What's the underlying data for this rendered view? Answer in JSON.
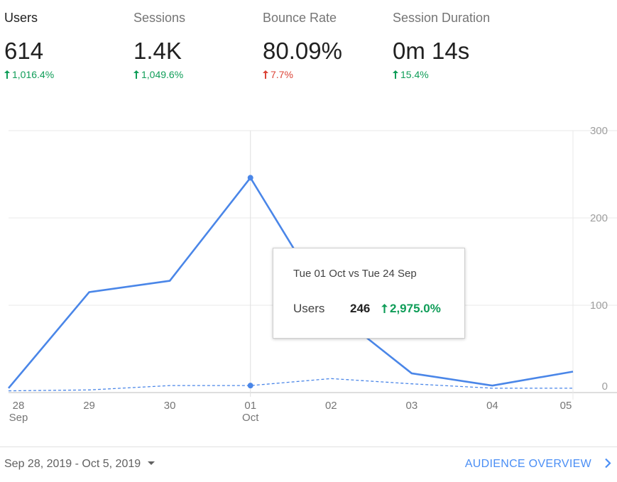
{
  "metrics": [
    {
      "label": "Users",
      "value": "614",
      "change": "1,016.4%",
      "trend": "up",
      "active": true
    },
    {
      "label": "Sessions",
      "value": "1.4K",
      "change": "1,049.6%",
      "trend": "up",
      "active": false
    },
    {
      "label": "Bounce Rate",
      "value": "80.09%",
      "change": "7.7%",
      "trend": "up-bad",
      "active": false
    },
    {
      "label": "Session Duration",
      "value": "0m 14s",
      "change": "15.4%",
      "trend": "up",
      "active": false
    }
  ],
  "chart_data": {
    "type": "line",
    "categories": [
      "28",
      "29",
      "30",
      "01",
      "02",
      "03",
      "04",
      "05"
    ],
    "category_sublabels": {
      "0": "Sep",
      "3": "Oct"
    },
    "y_ticks": [
      0,
      100,
      200,
      300
    ],
    "ylim": [
      0,
      300
    ],
    "grid": true,
    "series": [
      {
        "key": "current",
        "values": [
          5,
          115,
          128,
          246,
          95,
          22,
          8,
          24
        ],
        "style": "solid",
        "color": "#4a86e8"
      },
      {
        "key": "previous",
        "values": [
          2,
          3,
          8,
          8,
          16,
          10,
          5,
          5
        ],
        "style": "dashed",
        "color": "#4a86e8"
      }
    ],
    "highlight_index": 3
  },
  "tooltip": {
    "title": "Tue 01 Oct vs Tue 24 Sep",
    "label": "Users",
    "value": "246",
    "change": "2,975.0%"
  },
  "footer": {
    "date_range": "Sep 28, 2019 - Oct 5, 2019",
    "link_label": "AUDIENCE OVERVIEW"
  },
  "colors": {
    "up": "#0f9d58",
    "down": "#db4437",
    "accent": "#4a86e8",
    "link": "#4a8ef5"
  },
  "icons": {
    "trend": "arrow-up-icon",
    "dropdown": "caret-down-icon",
    "link": "chevron-right-icon"
  }
}
